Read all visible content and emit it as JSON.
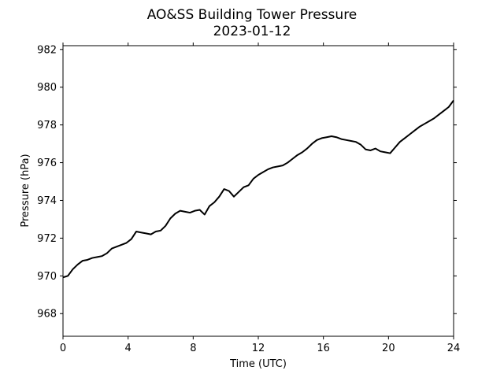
{
  "chart_data": {
    "type": "line",
    "title": "AO&SS Building Tower Pressure",
    "subtitle": "2023-01-12",
    "xlabel": "Time (UTC)",
    "ylabel": "Pressure (hPa)",
    "xlim": [
      0,
      24
    ],
    "ylim": [
      966.8,
      982.2
    ],
    "xticks": [
      "0",
      "4",
      "8",
      "12",
      "16",
      "20",
      "24"
    ],
    "yticks": [
      "968",
      "970",
      "972",
      "974",
      "976",
      "978",
      "980",
      "982"
    ],
    "grid": false,
    "legend": "none",
    "line_color": "#000000",
    "series": [
      {
        "x": [
          0,
          0.3,
          0.6,
          0.9,
          1.2,
          1.5,
          1.8,
          2.1,
          2.4,
          2.7,
          3.0,
          3.3,
          3.6,
          3.9,
          4.2,
          4.5,
          4.8,
          5.1,
          5.4,
          5.7,
          6.0,
          6.3,
          6.6,
          6.9,
          7.2,
          7.5,
          7.8,
          8.1,
          8.4,
          8.7,
          9.0,
          9.3,
          9.6,
          9.9,
          10.2,
          10.5,
          10.8,
          11.1,
          11.4,
          11.7,
          12.0,
          12.3,
          12.6,
          12.9,
          13.2,
          13.5,
          13.8,
          14.1,
          14.4,
          14.7,
          15.0,
          15.3,
          15.6,
          15.9,
          16.2,
          16.5,
          16.8,
          17.1,
          17.4,
          17.7,
          18.0,
          18.3,
          18.6,
          18.9,
          19.2,
          19.5,
          19.8,
          20.1,
          20.4,
          20.7,
          21.0,
          21.3,
          21.6,
          21.9,
          22.2,
          22.5,
          22.8,
          23.1,
          23.4,
          23.7,
          24.0
        ],
        "values": [
          969.92,
          970.0,
          970.35,
          970.6,
          970.8,
          970.85,
          970.95,
          971.0,
          971.05,
          971.2,
          971.45,
          971.55,
          971.65,
          971.75,
          971.95,
          972.35,
          972.3,
          972.25,
          972.2,
          972.35,
          972.4,
          972.65,
          973.05,
          973.3,
          973.45,
          973.4,
          973.35,
          973.45,
          973.5,
          973.25,
          973.7,
          973.9,
          974.2,
          974.6,
          974.5,
          974.2,
          974.45,
          974.7,
          974.8,
          975.15,
          975.35,
          975.5,
          975.65,
          975.75,
          975.8,
          975.85,
          976.0,
          976.2,
          976.4,
          976.55,
          976.75,
          977.0,
          977.2,
          977.3,
          977.35,
          977.4,
          977.35,
          977.25,
          977.2,
          977.15,
          977.1,
          976.95,
          976.7,
          976.65,
          976.75,
          976.6,
          976.55,
          976.5,
          976.8,
          977.1,
          977.3,
          977.5,
          977.7,
          977.9,
          978.05,
          978.2,
          978.35,
          978.55,
          978.75,
          978.95,
          979.3
        ]
      }
    ]
  }
}
